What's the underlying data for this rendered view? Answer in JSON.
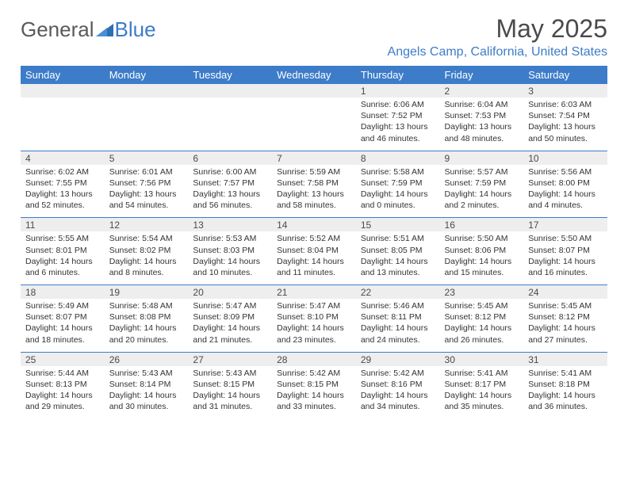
{
  "brand": {
    "general": "General",
    "blue": "Blue"
  },
  "title": "May 2025",
  "location": "Angels Camp, California, United States",
  "colors": {
    "header_bg": "#3d7cc9",
    "header_text": "#ffffff",
    "daynum_bg": "#eeeeee",
    "text": "#333333",
    "accent": "#3d7cc9"
  },
  "dow": [
    "Sunday",
    "Monday",
    "Tuesday",
    "Wednesday",
    "Thursday",
    "Friday",
    "Saturday"
  ],
  "weeks": [
    [
      null,
      null,
      null,
      null,
      {
        "n": "1",
        "sr": "6:06 AM",
        "ss": "7:52 PM",
        "dl": "13 hours and 46 minutes."
      },
      {
        "n": "2",
        "sr": "6:04 AM",
        "ss": "7:53 PM",
        "dl": "13 hours and 48 minutes."
      },
      {
        "n": "3",
        "sr": "6:03 AM",
        "ss": "7:54 PM",
        "dl": "13 hours and 50 minutes."
      }
    ],
    [
      {
        "n": "4",
        "sr": "6:02 AM",
        "ss": "7:55 PM",
        "dl": "13 hours and 52 minutes."
      },
      {
        "n": "5",
        "sr": "6:01 AM",
        "ss": "7:56 PM",
        "dl": "13 hours and 54 minutes."
      },
      {
        "n": "6",
        "sr": "6:00 AM",
        "ss": "7:57 PM",
        "dl": "13 hours and 56 minutes."
      },
      {
        "n": "7",
        "sr": "5:59 AM",
        "ss": "7:58 PM",
        "dl": "13 hours and 58 minutes."
      },
      {
        "n": "8",
        "sr": "5:58 AM",
        "ss": "7:59 PM",
        "dl": "14 hours and 0 minutes."
      },
      {
        "n": "9",
        "sr": "5:57 AM",
        "ss": "7:59 PM",
        "dl": "14 hours and 2 minutes."
      },
      {
        "n": "10",
        "sr": "5:56 AM",
        "ss": "8:00 PM",
        "dl": "14 hours and 4 minutes."
      }
    ],
    [
      {
        "n": "11",
        "sr": "5:55 AM",
        "ss": "8:01 PM",
        "dl": "14 hours and 6 minutes."
      },
      {
        "n": "12",
        "sr": "5:54 AM",
        "ss": "8:02 PM",
        "dl": "14 hours and 8 minutes."
      },
      {
        "n": "13",
        "sr": "5:53 AM",
        "ss": "8:03 PM",
        "dl": "14 hours and 10 minutes."
      },
      {
        "n": "14",
        "sr": "5:52 AM",
        "ss": "8:04 PM",
        "dl": "14 hours and 11 minutes."
      },
      {
        "n": "15",
        "sr": "5:51 AM",
        "ss": "8:05 PM",
        "dl": "14 hours and 13 minutes."
      },
      {
        "n": "16",
        "sr": "5:50 AM",
        "ss": "8:06 PM",
        "dl": "14 hours and 15 minutes."
      },
      {
        "n": "17",
        "sr": "5:50 AM",
        "ss": "8:07 PM",
        "dl": "14 hours and 16 minutes."
      }
    ],
    [
      {
        "n": "18",
        "sr": "5:49 AM",
        "ss": "8:07 PM",
        "dl": "14 hours and 18 minutes."
      },
      {
        "n": "19",
        "sr": "5:48 AM",
        "ss": "8:08 PM",
        "dl": "14 hours and 20 minutes."
      },
      {
        "n": "20",
        "sr": "5:47 AM",
        "ss": "8:09 PM",
        "dl": "14 hours and 21 minutes."
      },
      {
        "n": "21",
        "sr": "5:47 AM",
        "ss": "8:10 PM",
        "dl": "14 hours and 23 minutes."
      },
      {
        "n": "22",
        "sr": "5:46 AM",
        "ss": "8:11 PM",
        "dl": "14 hours and 24 minutes."
      },
      {
        "n": "23",
        "sr": "5:45 AM",
        "ss": "8:12 PM",
        "dl": "14 hours and 26 minutes."
      },
      {
        "n": "24",
        "sr": "5:45 AM",
        "ss": "8:12 PM",
        "dl": "14 hours and 27 minutes."
      }
    ],
    [
      {
        "n": "25",
        "sr": "5:44 AM",
        "ss": "8:13 PM",
        "dl": "14 hours and 29 minutes."
      },
      {
        "n": "26",
        "sr": "5:43 AM",
        "ss": "8:14 PM",
        "dl": "14 hours and 30 minutes."
      },
      {
        "n": "27",
        "sr": "5:43 AM",
        "ss": "8:15 PM",
        "dl": "14 hours and 31 minutes."
      },
      {
        "n": "28",
        "sr": "5:42 AM",
        "ss": "8:15 PM",
        "dl": "14 hours and 33 minutes."
      },
      {
        "n": "29",
        "sr": "5:42 AM",
        "ss": "8:16 PM",
        "dl": "14 hours and 34 minutes."
      },
      {
        "n": "30",
        "sr": "5:41 AM",
        "ss": "8:17 PM",
        "dl": "14 hours and 35 minutes."
      },
      {
        "n": "31",
        "sr": "5:41 AM",
        "ss": "8:18 PM",
        "dl": "14 hours and 36 minutes."
      }
    ]
  ],
  "labels": {
    "sunrise": "Sunrise:",
    "sunset": "Sunset:",
    "daylight": "Daylight:"
  }
}
